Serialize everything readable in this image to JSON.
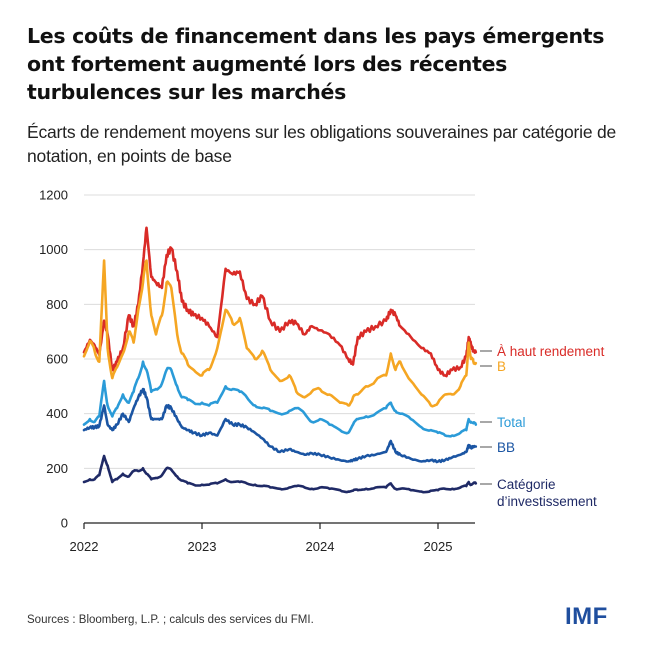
{
  "header": {
    "title": "Les coûts de financement dans les pays émergents ont fortement augmenté lors des récentes turbulences sur les marchés",
    "subtitle": "Écarts de rendement moyens sur les obligations souveraines par catégorie de notation, en points de base"
  },
  "footer": {
    "source": "Sources : Bloomberg, L.P. ; calculs des services du FMI.",
    "logo": "IMF"
  },
  "chart_data": {
    "type": "line",
    "title": "Les coûts de financement dans les pays émergents ont fortement augmenté lors des récentes turbulences sur les marchés",
    "subtitle": "Écarts de rendement moyens sur les obligations souveraines par catégorie de notation, en points de base",
    "xlabel": "",
    "ylabel": "points de base",
    "xlim": [
      2022.0,
      2025.32
    ],
    "ylim": [
      0,
      1200
    ],
    "x_ticks": [
      2022,
      2023,
      2024,
      2025
    ],
    "x_tick_labels": [
      "2022",
      "2023",
      "2024",
      "2025"
    ],
    "y_ticks": [
      0,
      200,
      400,
      600,
      800,
      1000,
      1200
    ],
    "y_tick_labels": [
      "0",
      "200",
      "400",
      "600",
      "800",
      "1000",
      "1200"
    ],
    "grid": "horizontal",
    "legend": "right, labels at line ends",
    "x": [
      2022.0,
      2022.05,
      2022.09,
      2022.13,
      2022.17,
      2022.2,
      2022.24,
      2022.28,
      2022.33,
      2022.38,
      2022.42,
      2022.46,
      2022.5,
      2022.53,
      2022.57,
      2022.61,
      2022.66,
      2022.7,
      2022.74,
      2022.79,
      2022.83,
      2022.88,
      2022.93,
      2023.0,
      2023.06,
      2023.13,
      2023.2,
      2023.26,
      2023.32,
      2023.38,
      2023.45,
      2023.51,
      2023.58,
      2023.66,
      2023.74,
      2023.8,
      2023.87,
      2023.93,
      2024.0,
      2024.08,
      2024.17,
      2024.24,
      2024.28,
      2024.32,
      2024.39,
      2024.47,
      2024.56,
      2024.6,
      2024.64,
      2024.68,
      2024.77,
      2024.86,
      2024.94,
      2025.0,
      2025.06,
      2025.12,
      2025.19,
      2025.24,
      2025.26,
      2025.28,
      2025.3,
      2025.32
    ],
    "series": [
      {
        "name": "À haut rendement",
        "color": "#d92b27",
        "values": [
          625,
          670,
          650,
          615,
          740,
          690,
          560,
          590,
          640,
          760,
          720,
          800,
          950,
          1080,
          900,
          880,
          860,
          980,
          1005,
          920,
          810,
          780,
          760,
          750,
          720,
          680,
          930,
          910,
          920,
          820,
          800,
          830,
          740,
          700,
          740,
          730,
          690,
          720,
          705,
          690,
          650,
          600,
          580,
          680,
          700,
          720,
          740,
          780,
          760,
          720,
          680,
          640,
          620,
          560,
          540,
          560,
          570,
          610,
          680,
          650,
          630,
          625
        ]
      },
      {
        "name": "B",
        "color": "#f5a623",
        "values": [
          610,
          665,
          630,
          590,
          960,
          640,
          530,
          570,
          620,
          700,
          660,
          780,
          880,
          960,
          760,
          690,
          760,
          880,
          860,
          690,
          620,
          580,
          560,
          540,
          560,
          640,
          780,
          730,
          750,
          640,
          600,
          630,
          560,
          520,
          540,
          480,
          460,
          480,
          490,
          470,
          440,
          430,
          460,
          470,
          500,
          520,
          540,
          620,
          560,
          590,
          520,
          470,
          430,
          440,
          470,
          470,
          500,
          540,
          660,
          600,
          590,
          585
        ]
      },
      {
        "name": "Total",
        "color": "#2b9bd8",
        "values": [
          360,
          380,
          370,
          390,
          520,
          430,
          390,
          420,
          470,
          440,
          480,
          530,
          590,
          560,
          480,
          490,
          510,
          560,
          560,
          500,
          460,
          450,
          440,
          440,
          430,
          440,
          500,
          490,
          480,
          460,
          430,
          420,
          410,
          400,
          410,
          420,
          400,
          370,
          380,
          360,
          340,
          330,
          360,
          380,
          390,
          400,
          420,
          440,
          410,
          400,
          380,
          350,
          340,
          330,
          320,
          320,
          330,
          340,
          380,
          370,
          365,
          360
        ]
      },
      {
        "name": "BB",
        "color": "#1b55a3",
        "values": [
          340,
          350,
          350,
          355,
          430,
          360,
          340,
          360,
          400,
          370,
          420,
          460,
          490,
          460,
          380,
          380,
          380,
          430,
          420,
          380,
          350,
          340,
          330,
          320,
          330,
          320,
          380,
          360,
          360,
          350,
          330,
          310,
          280,
          260,
          270,
          260,
          250,
          255,
          250,
          240,
          230,
          225,
          230,
          235,
          245,
          250,
          260,
          300,
          260,
          250,
          235,
          225,
          230,
          225,
          230,
          240,
          250,
          260,
          285,
          275,
          280,
          280
        ]
      },
      {
        "name": "Catégorie d’investissement",
        "color": "#1f2a66",
        "values": [
          150,
          160,
          160,
          175,
          245,
          210,
          150,
          160,
          180,
          170,
          190,
          190,
          200,
          180,
          160,
          165,
          175,
          200,
          195,
          170,
          155,
          145,
          140,
          140,
          140,
          145,
          160,
          150,
          150,
          145,
          140,
          135,
          130,
          125,
          130,
          135,
          130,
          125,
          130,
          125,
          120,
          115,
          118,
          120,
          125,
          130,
          130,
          145,
          125,
          125,
          120,
          115,
          118,
          120,
          125,
          125,
          130,
          135,
          150,
          140,
          145,
          145
        ]
      }
    ],
    "series_labels": [
      "À haut rendement",
      "B",
      "Total",
      "BB",
      "Catégorie",
      "d’investissement"
    ]
  }
}
